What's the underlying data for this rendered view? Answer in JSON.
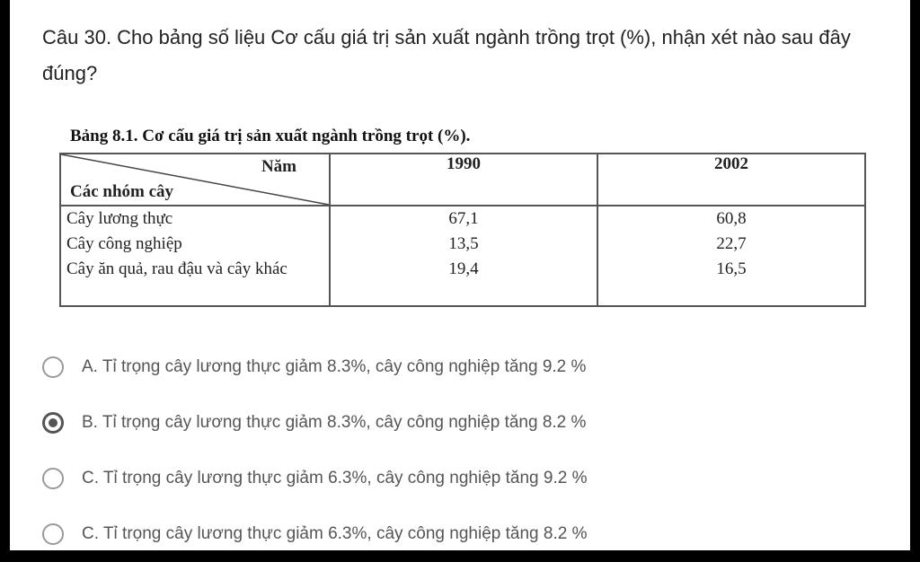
{
  "question": "Câu 30. Cho bảng số liệu Cơ cấu giá trị sản xuất ngành trồng trọt (%), nhận xét nào sau đây đúng?",
  "table": {
    "caption": "Bảng 8.1. Cơ cấu giá trị sản xuất ngành trồng trọt (%).",
    "corner_top": "Năm",
    "corner_bottom": "Các nhóm cây",
    "columns": [
      "1990",
      "2002"
    ],
    "rows": [
      {
        "label": "Cây lương thực",
        "values": [
          "67,1",
          "60,8"
        ]
      },
      {
        "label": "Cây công nghiệp",
        "values": [
          "13,5",
          "22,7"
        ]
      },
      {
        "label": "Cây ăn quả, rau đậu và cây khác",
        "values": [
          "19,4",
          "16,5"
        ]
      }
    ]
  },
  "options": [
    {
      "label": "A. Tỉ trọng cây lương thực giảm 8.3%, cây công nghiệp tăng 9.2 %",
      "selected": false
    },
    {
      "label": "B. Tỉ trọng cây lương thực giảm 8.3%, cây công nghiệp tăng 8.2 %",
      "selected": true
    },
    {
      "label": "C. Tỉ trọng cây lương thực giảm 6.3%, cây công nghiệp tăng 9.2 %",
      "selected": false
    },
    {
      "label": "C. Tỉ trọng cây lương thực giảm 6.3%, cây công nghiệp tăng 8.2 %",
      "selected": false
    }
  ]
}
